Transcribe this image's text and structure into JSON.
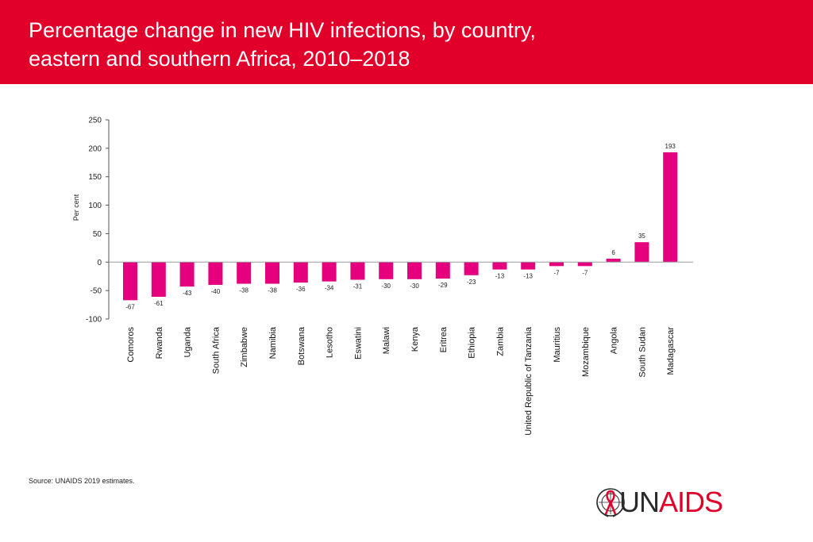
{
  "page": {
    "title_line1": "Percentage change in new HIV infections, by country,",
    "title_line2": "eastern and southern Africa, 2010–2018",
    "source": "Source: UNAIDS 2019 estimates.",
    "logo_un": "UN",
    "logo_aids": "AIDS"
  },
  "colors": {
    "header": "#e1002a",
    "bar": "#e5007e",
    "axis": "#555555"
  },
  "chart_data": {
    "type": "bar",
    "title": "Percentage change in new HIV infections, by country, eastern and southern Africa, 2010–2018",
    "ylabel": "Per cent",
    "xlabel": "",
    "ylim": [
      -100,
      250
    ],
    "yticks": [
      250,
      200,
      150,
      100,
      50,
      0,
      -50,
      -100
    ],
    "grid": false,
    "categories": [
      "Comoros",
      "Rwanda",
      "Uganda",
      "South Africa",
      "Zimbabwe",
      "Namibia",
      "Botswana",
      "Lesotho",
      "Eswatini",
      "Malawi",
      "Kenya",
      "Eritrea",
      "Ethiopia",
      "Zambia",
      "United Republic of Tanzania",
      "Mauritius",
      "Mozambique",
      "Angola",
      "South Sudan",
      "Madagascar"
    ],
    "values": [
      -67,
      -61,
      -43,
      -40,
      -38,
      -38,
      -36,
      -34,
      -31,
      -30,
      -30,
      -29,
      -23,
      -13,
      -13,
      -7,
      -7,
      6,
      35,
      193
    ]
  }
}
